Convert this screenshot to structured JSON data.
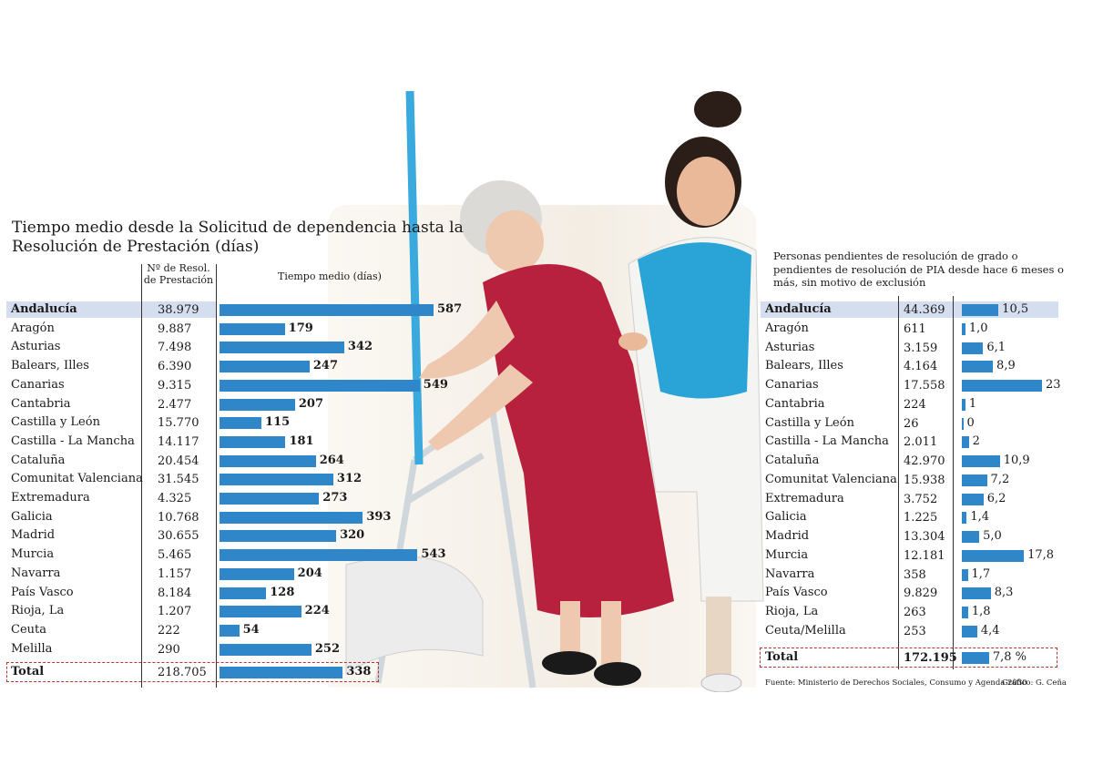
{
  "left": {
    "title": "Tiempo medio desde la Solicitud de dependencia hasta la Resolución de Prestación (días)",
    "col_resol": "Nº de Resol. de Prestación",
    "col_tiempo": "Tiempo medio (días)",
    "total": {
      "label": "Total",
      "resol": "218.705",
      "tiempo": 338
    }
  },
  "right": {
    "title": "Personas pendientes de resolución de grado o pendientes de resolución de PIA desde hace 6 meses o más, sin motivo de exclusión",
    "total": {
      "label": "Total",
      "pendientes": "172.195",
      "pct_label": "7,8 %",
      "pct": 7.8
    }
  },
  "source": "Fuente: Ministerio de Derechos Sociales, Consumo y Agenda 2030",
  "credit": "Gráfico: G. Ceña",
  "colors": {
    "bar": "#2f86c8",
    "highlight": "#d4deee",
    "total_border": "#b33333"
  },
  "chart_data": [
    {
      "type": "bar",
      "title": "Tiempo medio desde la Solicitud de dependencia hasta la Resolución de Prestación (días)",
      "categories": [
        "Andalucía",
        "Aragón",
        "Asturias",
        "Balears, Illes",
        "Canarias",
        "Cantabria",
        "Castilla y León",
        "Castilla - La Mancha",
        "Cataluña",
        "Comunitat Valenciana",
        "Extremadura",
        "Galicia",
        "Madrid",
        "Murcia",
        "Navarra",
        "País Vasco",
        "Rioja, La",
        "Ceuta",
        "Melilla"
      ],
      "resoluciones": [
        "38.979",
        "9.887",
        "7.498",
        "6.390",
        "9.315",
        "2.477",
        "15.770",
        "14.117",
        "20.454",
        "31.545",
        "4.325",
        "10.768",
        "30.655",
        "5.465",
        "1.157",
        "8.184",
        "1.207",
        "222",
        "290"
      ],
      "values": [
        587,
        179,
        342,
        247,
        549,
        207,
        115,
        181,
        264,
        312,
        273,
        393,
        320,
        543,
        204,
        128,
        224,
        54,
        252
      ],
      "highlight": "Andalucía"
    },
    {
      "type": "bar",
      "title": "Personas pendientes de resolución de grado o pendientes de resolución de PIA desde hace 6 meses o más, sin motivo de exclusión",
      "categories": [
        "Andalucía",
        "Aragón",
        "Asturias",
        "Balears, Illes",
        "Canarias",
        "Cantabria",
        "Castilla y León",
        "Castilla - La Mancha",
        "Cataluña",
        "Comunitat Valenciana",
        "Extremadura",
        "Galicia",
        "Madrid",
        "Murcia",
        "Navarra",
        "País Vasco",
        "Rioja, La",
        "Ceuta/Melilla"
      ],
      "pendientes": [
        "44.369",
        "611",
        "3.159",
        "4.164",
        "17.558",
        "224",
        "26",
        "2.011",
        "42.970",
        "15.938",
        "3.752",
        "1.225",
        "13.304",
        "12.181",
        "358",
        "9.829",
        "263",
        "253"
      ],
      "values": [
        10.5,
        1.0,
        6.1,
        8.9,
        23,
        1,
        0,
        2,
        10.9,
        7.2,
        6.2,
        1.4,
        5.0,
        17.8,
        1.7,
        8.3,
        1.8,
        4.4
      ],
      "value_labels": [
        "10,5",
        "1,0",
        "6,1",
        "8,9",
        "23",
        "1",
        "0",
        "2",
        "10,9",
        "7,2",
        "6,2",
        "1,4",
        "5,0",
        "17,8",
        "1,7",
        "8,3",
        "1,8",
        "4,4"
      ],
      "highlight": "Andalucía"
    }
  ]
}
